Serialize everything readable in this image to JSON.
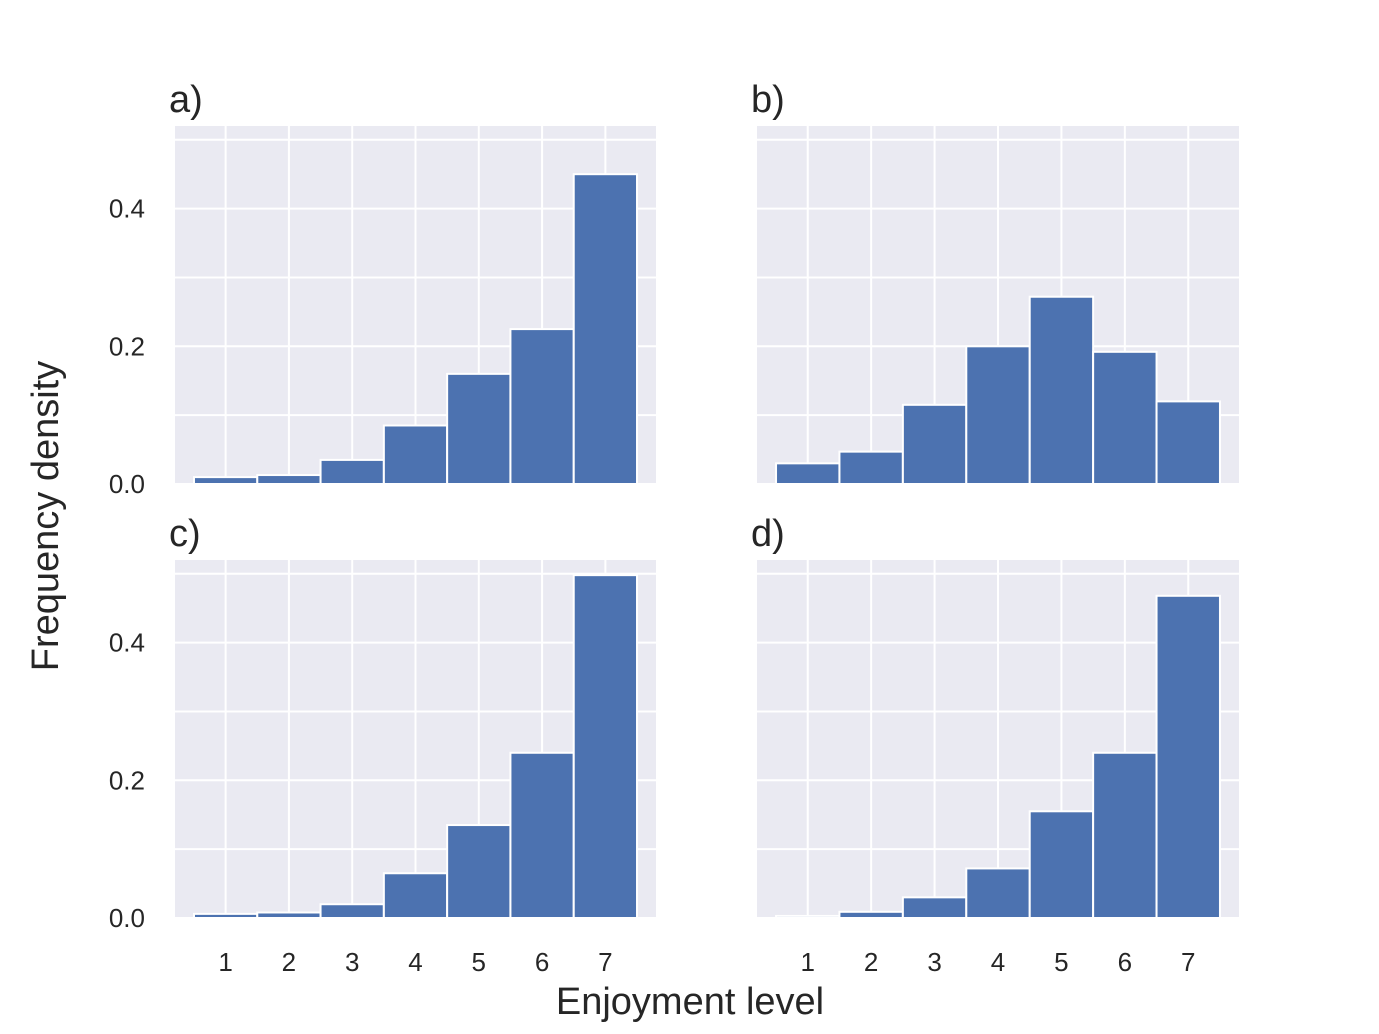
{
  "colors": {
    "bar": "#4c72b0",
    "panel_bg": "#eaeaf2",
    "grid": "#ffffff",
    "text": "#262626"
  },
  "chart_data": {
    "type": "bar",
    "title": "",
    "xlabel": "Enjoyment level",
    "ylabel": "Frequency density",
    "ylim": [
      0,
      0.52
    ],
    "xlim": [
      0.2,
      7.8
    ],
    "categories": [
      "1",
      "2",
      "3",
      "4",
      "5",
      "6",
      "7"
    ],
    "y_ticks": [
      "0.0",
      "0.2",
      "0.4"
    ],
    "panels": [
      {
        "label": "a)",
        "values": [
          0.01,
          0.013,
          0.035,
          0.085,
          0.16,
          0.225,
          0.45
        ]
      },
      {
        "label": "b)",
        "values": [
          0.03,
          0.047,
          0.115,
          0.2,
          0.272,
          0.192,
          0.12
        ]
      },
      {
        "label": "c)",
        "values": [
          0.006,
          0.008,
          0.02,
          0.065,
          0.135,
          0.24,
          0.498
        ]
      },
      {
        "label": "d)",
        "values": [
          0.003,
          0.009,
          0.03,
          0.072,
          0.155,
          0.24,
          0.468
        ]
      }
    ]
  }
}
